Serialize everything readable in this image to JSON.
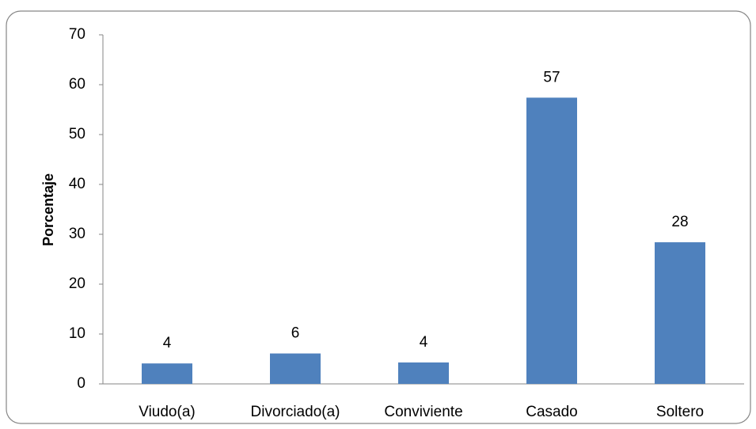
{
  "chart_data": {
    "type": "bar",
    "y_label": "Porcentaje",
    "categories": [
      "Viudo(a)",
      "Divorciado(a)",
      "Conviviente",
      "Casado",
      "Soltero"
    ],
    "values": [
      4.1,
      6.1,
      4.3,
      57.4,
      28.4
    ],
    "value_labels": [
      "4",
      "6",
      "4",
      "57",
      "28"
    ],
    "color": "#4f81bd",
    "ylim": [
      0,
      70
    ],
    "yticks": [
      0,
      10,
      20,
      30,
      40,
      50,
      60,
      70
    ],
    "grid": false
  }
}
